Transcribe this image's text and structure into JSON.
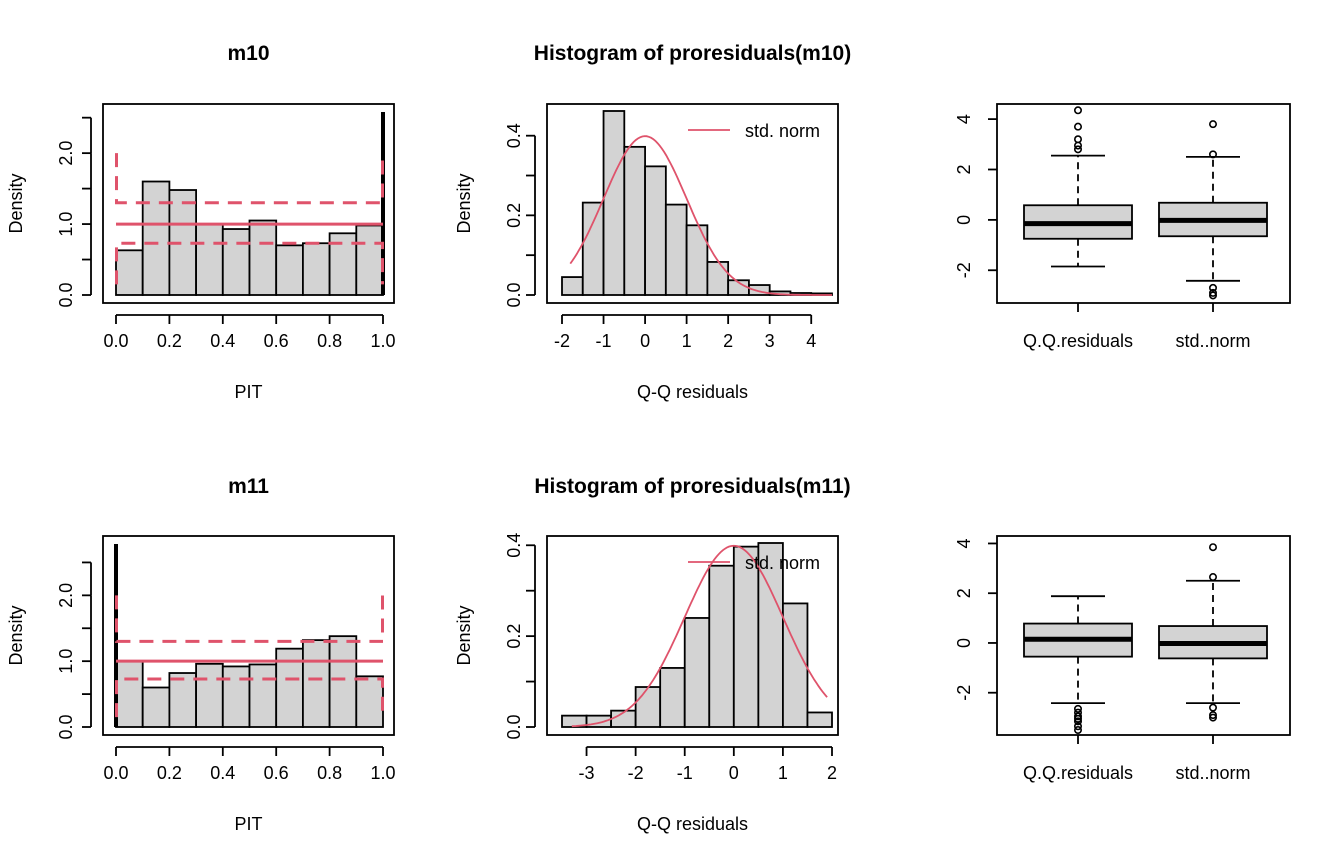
{
  "colors": {
    "bar_fill": "#d3d3d3",
    "accent": "#df536b",
    "axis": "#000000",
    "background": "#ffffff"
  },
  "chart_data": [
    {
      "type": "bar",
      "panel": "pit-m10",
      "title": "m10",
      "xlabel": "PIT",
      "ylabel": "Density",
      "xlim": [
        0,
        1
      ],
      "ylim": [
        0,
        2.6
      ],
      "xticks": [
        "0.0",
        "0.2",
        "0.4",
        "0.6",
        "0.8",
        "1.0"
      ],
      "yticks": [
        "0.0",
        "1.0",
        "2.0"
      ],
      "bins": [
        [
          0.0,
          0.1
        ],
        [
          0.1,
          0.2
        ],
        [
          0.2,
          0.3
        ],
        [
          0.3,
          0.4
        ],
        [
          0.4,
          0.5
        ],
        [
          0.5,
          0.6
        ],
        [
          0.6,
          0.7
        ],
        [
          0.7,
          0.8
        ],
        [
          0.8,
          0.9
        ],
        [
          0.9,
          1.0
        ]
      ],
      "values": [
        0.63,
        1.6,
        1.48,
        1.0,
        0.93,
        1.05,
        0.7,
        0.73,
        0.87,
        0.98
      ],
      "spikes": [
        {
          "x": 1.0,
          "y": 2.58
        }
      ],
      "reference_line": 1.0,
      "band_upper": 1.3,
      "band_lower": 0.73,
      "band_edge": 2.0
    },
    {
      "type": "histogram",
      "panel": "hist-m10",
      "title": "Histogram of proresiduals(m10)",
      "xlabel": "Q-Q residuals",
      "ylabel": "Density",
      "xlim": [
        -2,
        4.5
      ],
      "ylim": [
        0,
        0.45
      ],
      "xticks": [
        "-2",
        "-1",
        "0",
        "1",
        "2",
        "3",
        "4"
      ],
      "yticks": [
        "0.0",
        "0.2",
        "0.4"
      ],
      "bins": [
        [
          -2.0,
          -1.5
        ],
        [
          -1.5,
          -1.0
        ],
        [
          -1.0,
          -0.5
        ],
        [
          -0.5,
          0.0
        ],
        [
          0.0,
          0.5
        ],
        [
          0.5,
          1.0
        ],
        [
          1.0,
          1.5
        ],
        [
          1.5,
          2.0
        ],
        [
          2.0,
          2.5
        ],
        [
          2.5,
          3.0
        ],
        [
          3.0,
          3.5
        ],
        [
          3.5,
          4.0
        ],
        [
          4.0,
          4.5
        ]
      ],
      "values": [
        0.045,
        0.232,
        0.462,
        0.372,
        0.323,
        0.227,
        0.175,
        0.083,
        0.037,
        0.025,
        0.009,
        0.005,
        0.004
      ],
      "curve": {
        "name": "std. norm",
        "xmin": -1.8,
        "xmax": 4.5,
        "mean": 0,
        "sd": 1
      },
      "legend": {
        "label": "std. norm",
        "position": "top-right"
      }
    },
    {
      "type": "boxplot",
      "panel": "box-m10",
      "title": "",
      "xlabel": "",
      "ylabel": "",
      "ylim": [
        -3.3,
        4.6
      ],
      "yticks": [
        "-2",
        "0",
        "2",
        "4"
      ],
      "categories": [
        "Q.Q.residuals",
        "std..norm"
      ],
      "boxes": [
        {
          "min": -1.85,
          "q1": -0.75,
          "median": -0.15,
          "q3": 0.58,
          "max": 2.55,
          "outliers": [
            2.8,
            2.95,
            3.2,
            3.7,
            4.35
          ]
        },
        {
          "min": -2.42,
          "q1": -0.65,
          "median": -0.02,
          "q3": 0.68,
          "max": 2.5,
          "outliers": [
            2.6,
            3.8,
            -2.7,
            -2.9,
            -3.0
          ]
        }
      ]
    },
    {
      "type": "bar",
      "panel": "pit-m11",
      "title": "m11",
      "xlabel": "PIT",
      "ylabel": "Density",
      "xlim": [
        0,
        1
      ],
      "ylim": [
        0,
        2.6
      ],
      "xticks": [
        "0.0",
        "0.2",
        "0.4",
        "0.6",
        "0.8",
        "1.0"
      ],
      "yticks": [
        "0.0",
        "1.0",
        "2.0"
      ],
      "bins": [
        [
          0.0,
          0.1
        ],
        [
          0.1,
          0.2
        ],
        [
          0.2,
          0.3
        ],
        [
          0.3,
          0.4
        ],
        [
          0.4,
          0.5
        ],
        [
          0.5,
          0.6
        ],
        [
          0.6,
          0.7
        ],
        [
          0.7,
          0.8
        ],
        [
          0.8,
          0.9
        ],
        [
          0.9,
          1.0
        ]
      ],
      "values": [
        1.0,
        0.6,
        0.82,
        0.96,
        0.92,
        0.95,
        1.19,
        1.32,
        1.38,
        0.77
      ],
      "spikes": [
        {
          "x": 0.0,
          "y": 2.78
        }
      ],
      "reference_line": 1.0,
      "band_upper": 1.3,
      "band_lower": 0.73,
      "band_edge": 2.0
    },
    {
      "type": "histogram",
      "panel": "hist-m11",
      "title": "Histogram of proresiduals(m11)",
      "xlabel": "Q-Q residuals",
      "ylabel": "Density",
      "xlim": [
        -3.5,
        2
      ],
      "ylim": [
        0,
        0.42
      ],
      "xticks": [
        "-3",
        "-2",
        "-1",
        "0",
        "1",
        "2"
      ],
      "yticks": [
        "0.0",
        "0.2",
        "0.4"
      ],
      "bins": [
        [
          -3.5,
          -3.0
        ],
        [
          -3.0,
          -2.5
        ],
        [
          -2.5,
          -2.0
        ],
        [
          -2.0,
          -1.5
        ],
        [
          -1.5,
          -1.0
        ],
        [
          -1.0,
          -0.5
        ],
        [
          -0.5,
          0.0
        ],
        [
          0.0,
          0.5
        ],
        [
          0.5,
          1.0
        ],
        [
          1.0,
          1.5
        ],
        [
          1.5,
          2.0
        ]
      ],
      "values": [
        0.025,
        0.025,
        0.036,
        0.088,
        0.13,
        0.24,
        0.355,
        0.397,
        0.405,
        0.272,
        0.032
      ],
      "curve": {
        "name": "std. norm",
        "xmin": -3.3,
        "xmax": 1.9,
        "mean": 0,
        "sd": 1
      },
      "legend": {
        "label": "std. norm",
        "position": "top-right"
      }
    },
    {
      "type": "boxplot",
      "panel": "box-m11",
      "title": "",
      "xlabel": "",
      "ylabel": "",
      "ylim": [
        -3.7,
        4.3
      ],
      "yticks": [
        "-2",
        "0",
        "2",
        "4"
      ],
      "categories": [
        "Q.Q.residuals",
        "std..norm"
      ],
      "boxes": [
        {
          "min": -2.42,
          "q1": -0.55,
          "median": 0.15,
          "q3": 0.78,
          "max": 1.88,
          "outliers": [
            -2.65,
            -2.8,
            -2.95,
            -3.05,
            -3.15,
            -3.35,
            -3.5
          ]
        },
        {
          "min": -2.42,
          "q1": -0.62,
          "median": -0.02,
          "q3": 0.68,
          "max": 2.5,
          "outliers": [
            2.65,
            3.85,
            -2.6,
            -2.9,
            -3.0
          ]
        }
      ]
    }
  ]
}
